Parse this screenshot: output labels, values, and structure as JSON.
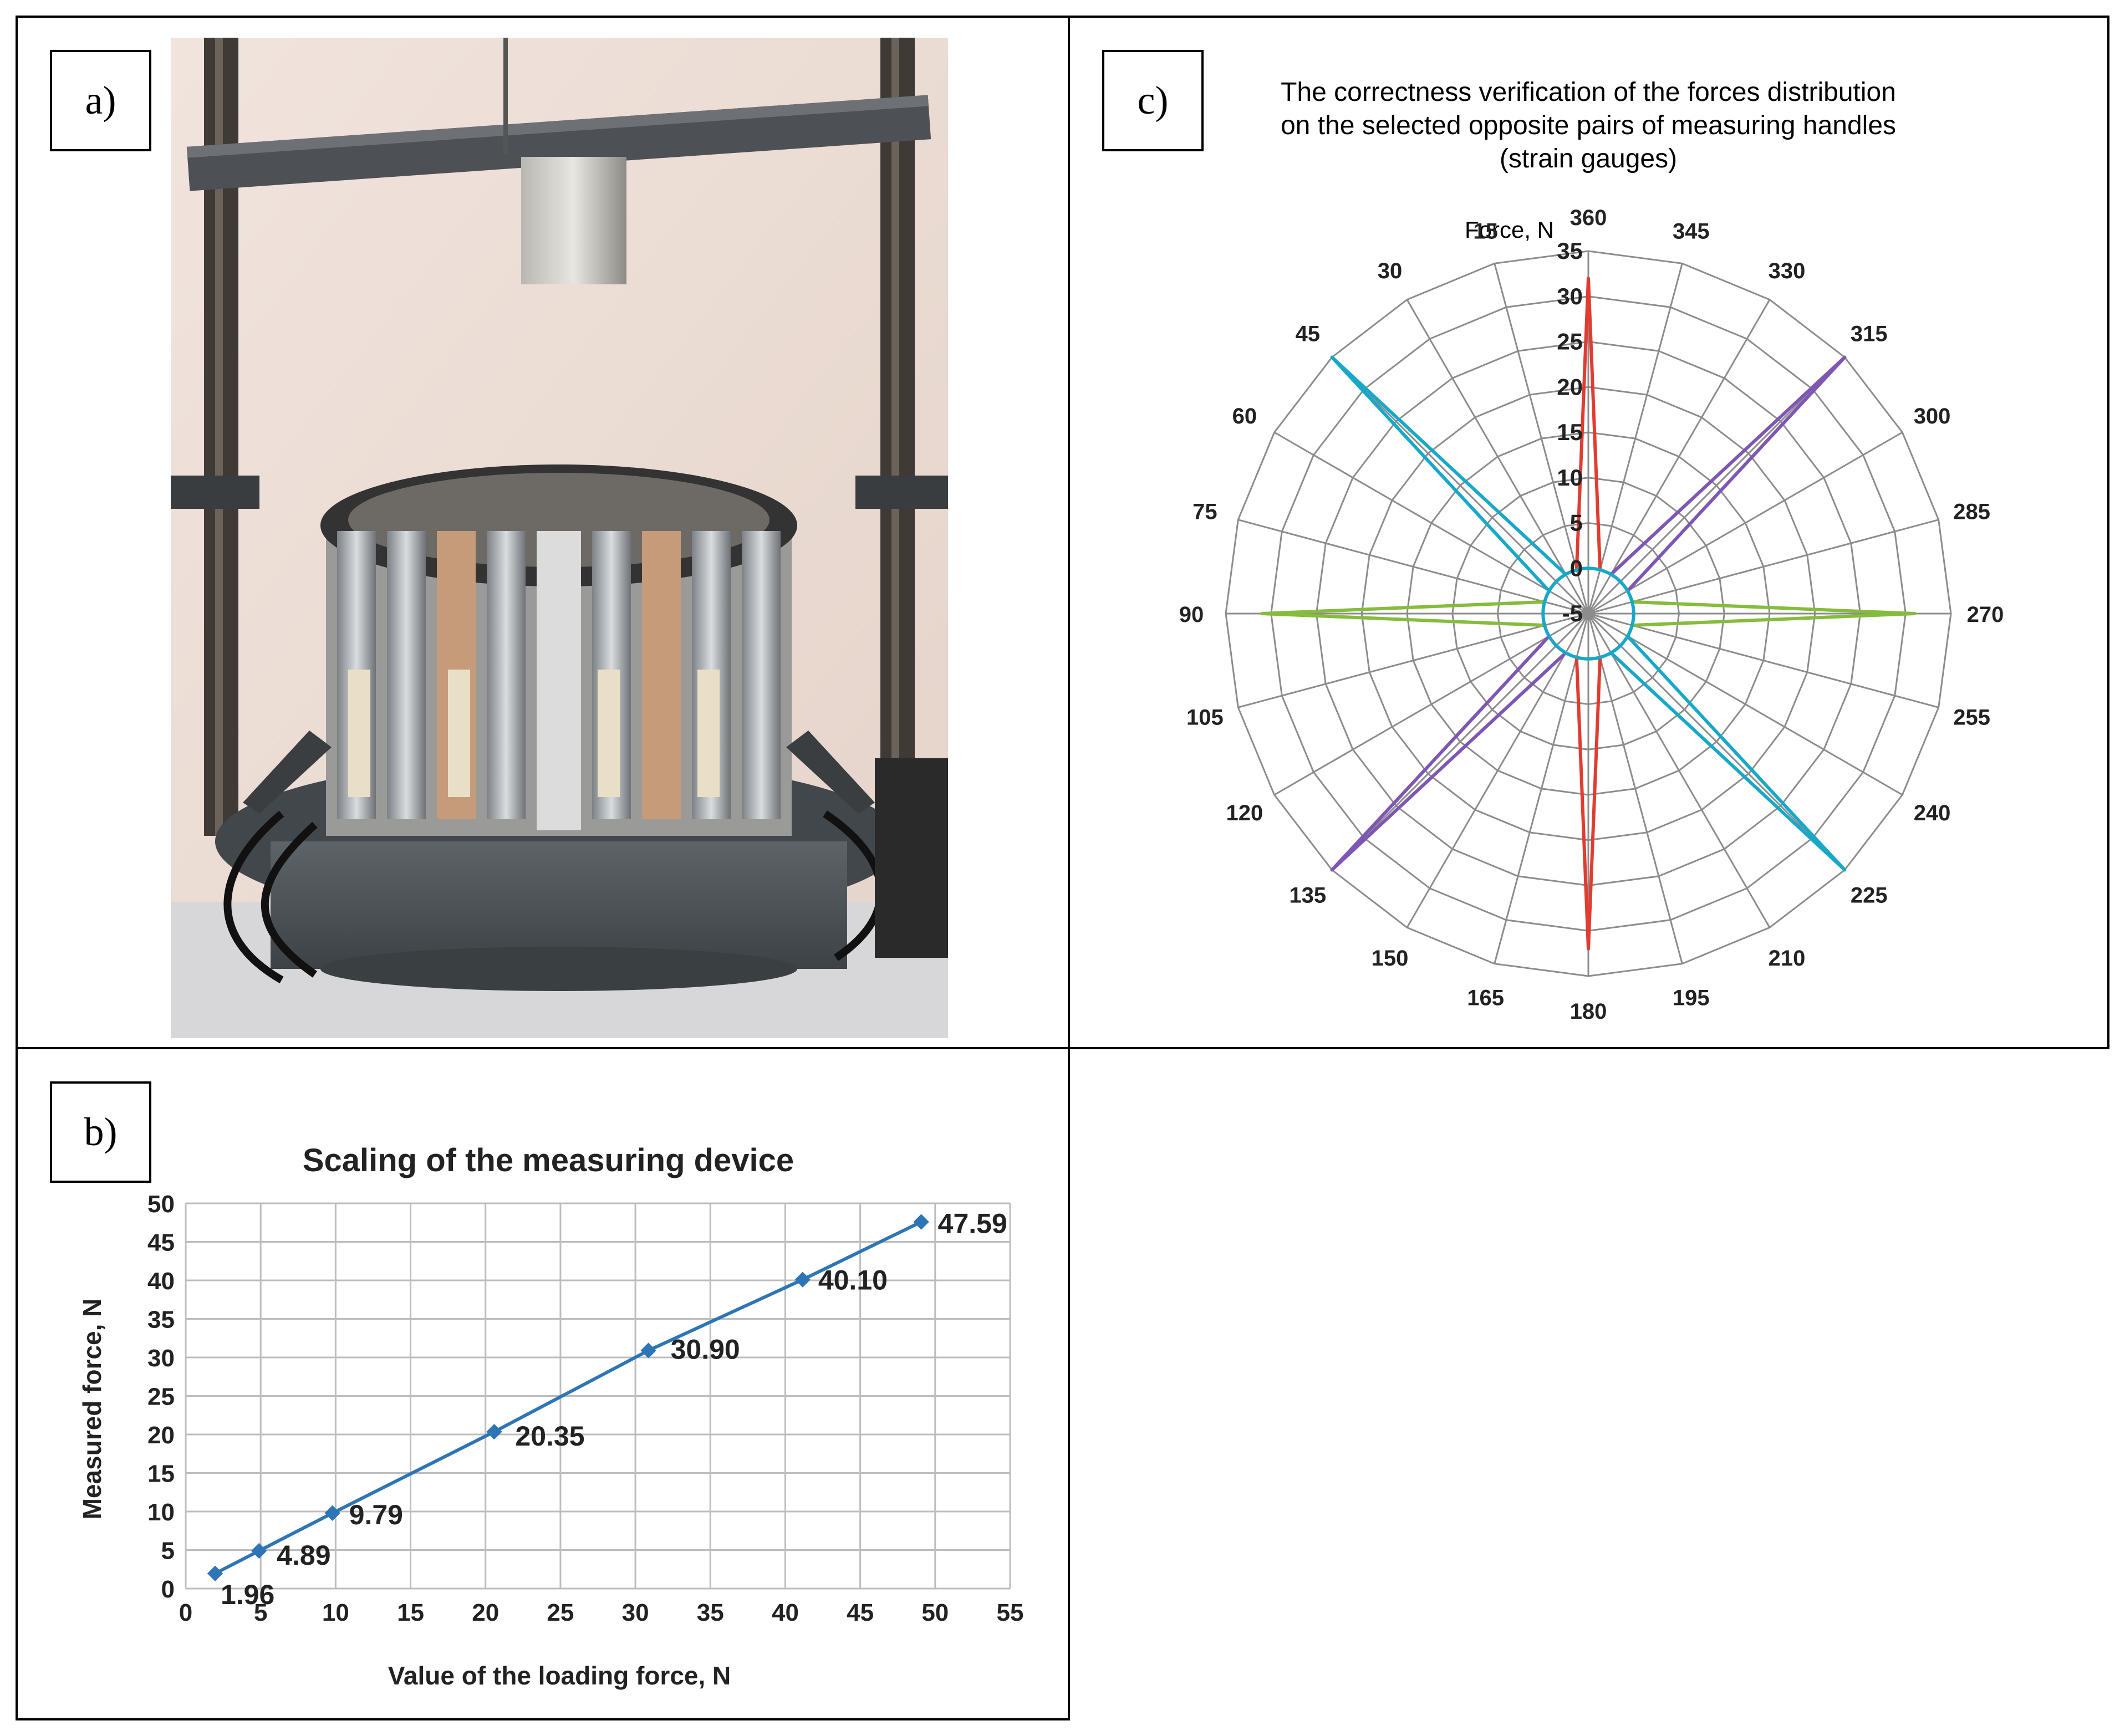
{
  "panels": {
    "a": {
      "label": "a)"
    },
    "b": {
      "label": "b)"
    },
    "c": {
      "label": "c)"
    }
  },
  "chart_data": [
    {
      "type": "line",
      "title": "Scaling of the measuring device",
      "xlabel": "Value of the loading force, N",
      "ylabel": "Measured force, N",
      "xlim": [
        0,
        55
      ],
      "ylim": [
        0,
        50
      ],
      "xticks": [
        "0",
        "5",
        "10",
        "15",
        "20",
        "25",
        "30",
        "35",
        "40",
        "45",
        "50",
        "55"
      ],
      "yticks": [
        "0",
        "5",
        "10",
        "15",
        "20",
        "25",
        "30",
        "35",
        "40",
        "45",
        "50"
      ],
      "grid": true,
      "color": "#2e75b6",
      "x": [
        1.96,
        4.89,
        9.79,
        20.58,
        30.87,
        41.16,
        49.07
      ],
      "values": [
        1.96,
        4.89,
        9.79,
        20.35,
        30.9,
        40.1,
        47.59
      ],
      "data_labels": [
        "1.96",
        "4.89",
        "9.79",
        "20.35",
        "30.90",
        "40.10",
        "47.59"
      ]
    },
    {
      "type": "radar",
      "title": "The correctness verification of the forces distribution on the selected opposite pairs of measuring handles (strain gauges)",
      "title_lines": [
        "The correctness verification of the forces distribution",
        "on the selected opposite pairs of measuring handles",
        "(strain gauges)"
      ],
      "radial_label": "Force, N",
      "rlim": [
        -5,
        35
      ],
      "radial_ticks": [
        "-5",
        "0",
        "5",
        "10",
        "15",
        "20",
        "25",
        "30",
        "35"
      ],
      "angle_labels": [
        "360",
        "345",
        "330",
        "315",
        "300",
        "285",
        "270",
        "255",
        "240",
        "225",
        "210",
        "195",
        "180",
        "165",
        "150",
        "135",
        "120",
        "105",
        "90",
        "75",
        "60",
        "45",
        "30",
        "15"
      ],
      "series": [
        {
          "color": "#e03c31",
          "angles": [
            0,
            180
          ],
          "peak": 32
        },
        {
          "color": "#7e57b4",
          "angles": [
            315,
            135
          ],
          "peak": 35
        },
        {
          "color": "#86bc3c",
          "angles": [
            270,
            90
          ],
          "peak": 31
        },
        {
          "color": "#17a8c8",
          "angles": [
            45,
            225
          ],
          "peak": 35
        }
      ],
      "baseline_color": "#17a8c8"
    }
  ]
}
